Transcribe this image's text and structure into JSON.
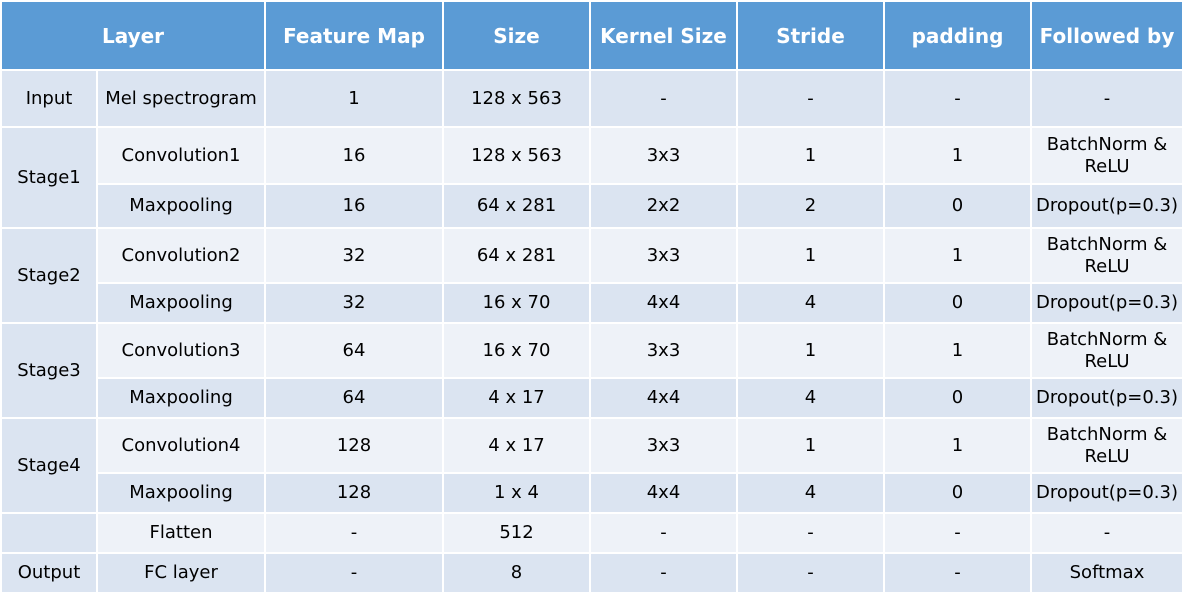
{
  "headers": [
    "Layer",
    "Feature Map",
    "Size",
    "Kernel Size",
    "Stride",
    "padding",
    "Followed by"
  ],
  "rows": [
    {
      "stage": "Input",
      "layer": "Mel spectrogram",
      "feature_map": "1",
      "size": "128 x 563",
      "kernel": "-",
      "stride": "-",
      "padding": "-",
      "followed_by": "-"
    },
    {
      "stage": "Stage1",
      "layer": "Convolution1",
      "feature_map": "16",
      "size": "128 x 563",
      "kernel": "3x3",
      "stride": "1",
      "padding": "1",
      "followed_by": "BatchNorm & ReLU"
    },
    {
      "stage": "",
      "layer": "Maxpooling",
      "feature_map": "16",
      "size": "64 x 281",
      "kernel": "2x2",
      "stride": "2",
      "padding": "0",
      "followed_by": "Dropout(p=0.3)"
    },
    {
      "stage": "Stage2",
      "layer": "Convolution2",
      "feature_map": "32",
      "size": "64 x 281",
      "kernel": "3x3",
      "stride": "1",
      "padding": "1",
      "followed_by": "BatchNorm & ReLU"
    },
    {
      "stage": "",
      "layer": "Maxpooling",
      "feature_map": "32",
      "size": "16 x 70",
      "kernel": "4x4",
      "stride": "4",
      "padding": "0",
      "followed_by": "Dropout(p=0.3)"
    },
    {
      "stage": "Stage3",
      "layer": "Convolution3",
      "feature_map": "64",
      "size": "16 x 70",
      "kernel": "3x3",
      "stride": "1",
      "padding": "1",
      "followed_by": "BatchNorm & ReLU"
    },
    {
      "stage": "",
      "layer": "Maxpooling",
      "feature_map": "64",
      "size": "4 x 17",
      "kernel": "4x4",
      "stride": "4",
      "padding": "0",
      "followed_by": "Dropout(p=0.3)"
    },
    {
      "stage": "Stage4",
      "layer": "Convolution4",
      "feature_map": "128",
      "size": "4 x 17",
      "kernel": "3x3",
      "stride": "1",
      "padding": "1",
      "followed_by": "BatchNorm & ReLU"
    },
    {
      "stage": "",
      "layer": "Maxpooling",
      "feature_map": "128",
      "size": "1 x 4",
      "kernel": "4x4",
      "stride": "4",
      "padding": "0",
      "followed_by": "Dropout(p=0.3)"
    },
    {
      "stage": "",
      "layer": "Flatten",
      "feature_map": "-",
      "size": "512",
      "kernel": "-",
      "stride": "-",
      "padding": "-",
      "followed_by": "-"
    },
    {
      "stage": "Output",
      "layer": "FC layer",
      "feature_map": "-",
      "size": "8",
      "kernel": "-",
      "stride": "-",
      "padding": "-",
      "followed_by": "Softmax"
    }
  ],
  "colors": {
    "header_bg": "#5b9bd5",
    "row_dark": "#dbe4f1",
    "row_light": "#eef2f8",
    "header_text": "#ffffff"
  }
}
